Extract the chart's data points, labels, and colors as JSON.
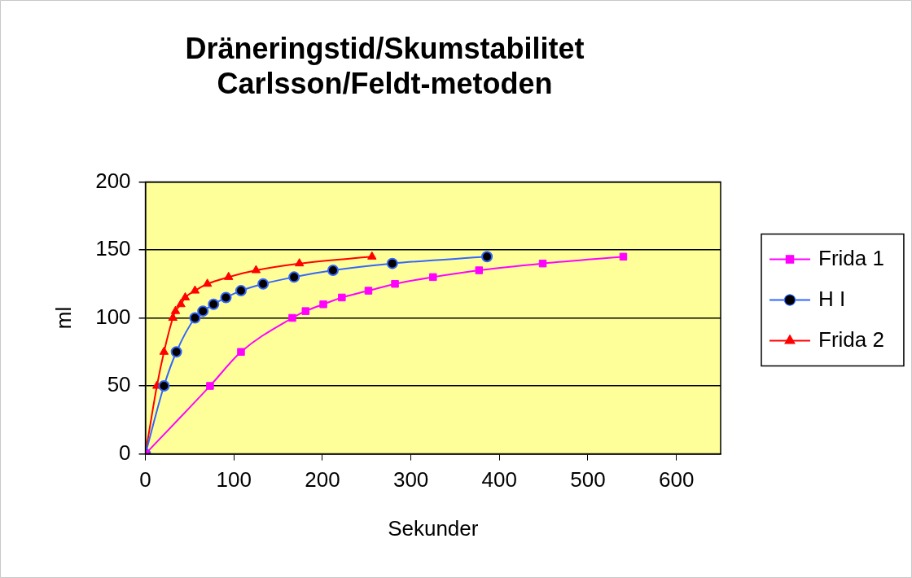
{
  "chart_data": {
    "type": "line",
    "title": "Dräneringstid/Skumstabilitet\nCarlsson/Feldt-metoden",
    "xlabel": "Sekunder",
    "ylabel": "ml",
    "xlim": [
      0,
      650
    ],
    "xticks": [
      0,
      100,
      200,
      300,
      400,
      500,
      600
    ],
    "ylim": [
      0,
      200
    ],
    "yticks": [
      0,
      50,
      100,
      150,
      200
    ],
    "grid": "y",
    "legend": "right",
    "series": [
      {
        "name": "Frida 1",
        "color": "#ff00ff",
        "marker": "square",
        "x": [
          0,
          73,
          108,
          166,
          181,
          201,
          222,
          252,
          282,
          325,
          377,
          449,
          540
        ],
        "values": [
          0,
          50,
          75,
          100,
          105,
          110,
          115,
          120,
          125,
          130,
          135,
          140,
          145
        ]
      },
      {
        "name": "H I",
        "color": "#3366ff",
        "marker": "circle",
        "x": [
          0,
          21,
          35,
          56,
          65,
          77,
          91,
          108,
          133,
          168,
          212,
          279,
          386
        ],
        "values": [
          0,
          50,
          75,
          100,
          105,
          110,
          115,
          120,
          125,
          130,
          135,
          140,
          145
        ]
      },
      {
        "name": "Frida 2",
        "color": "#ff0000",
        "marker": "triangle",
        "x": [
          0,
          13,
          21,
          31,
          34,
          40,
          45,
          56,
          70,
          94,
          125,
          174,
          256
        ],
        "values": [
          0,
          50,
          75,
          100,
          105,
          110,
          115,
          120,
          125,
          130,
          135,
          140,
          145
        ]
      }
    ]
  }
}
